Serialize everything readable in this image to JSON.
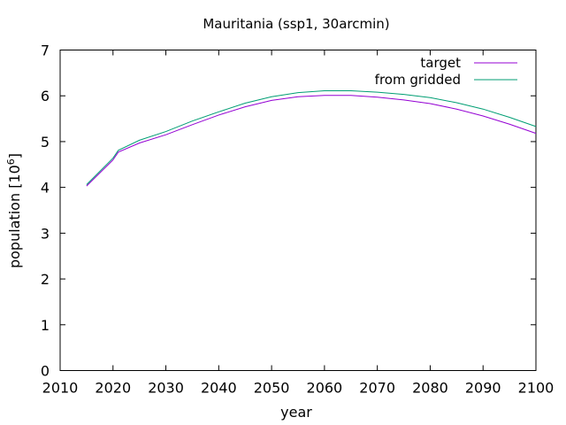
{
  "chart_data": {
    "type": "line",
    "title": "Mauritania (ssp1, 30arcmin)",
    "xlabel": "year",
    "ylabel": "population [10",
    "ylabel_exponent": "6",
    "ylabel_suffix": "]",
    "xlim": [
      2010,
      2100
    ],
    "ylim": [
      0,
      7
    ],
    "xticks": [
      2010,
      2020,
      2030,
      2040,
      2050,
      2060,
      2070,
      2080,
      2090,
      2100
    ],
    "yticks": [
      0,
      1,
      2,
      3,
      4,
      5,
      6,
      7
    ],
    "legend_position": "top-right",
    "grid": false,
    "series": [
      {
        "name": "target",
        "color": "#9400d3",
        "x": [
          2015,
          2020,
          2021,
          2025,
          2030,
          2035,
          2040,
          2045,
          2050,
          2055,
          2060,
          2065,
          2070,
          2075,
          2080,
          2085,
          2090,
          2095,
          2100
        ],
        "y": [
          4.03,
          4.6,
          4.77,
          4.97,
          5.15,
          5.37,
          5.58,
          5.76,
          5.9,
          5.98,
          6.01,
          6.01,
          5.97,
          5.91,
          5.83,
          5.71,
          5.56,
          5.38,
          5.18
        ]
      },
      {
        "name": "from gridded",
        "color": "#009e73",
        "x": [
          2015,
          2020,
          2021,
          2025,
          2030,
          2035,
          2040,
          2045,
          2050,
          2055,
          2060,
          2065,
          2070,
          2075,
          2080,
          2085,
          2090,
          2095,
          2100
        ],
        "y": [
          4.06,
          4.64,
          4.81,
          5.03,
          5.22,
          5.45,
          5.65,
          5.84,
          5.98,
          6.07,
          6.11,
          6.11,
          6.08,
          6.03,
          5.96,
          5.85,
          5.71,
          5.53,
          5.33
        ]
      }
    ]
  }
}
